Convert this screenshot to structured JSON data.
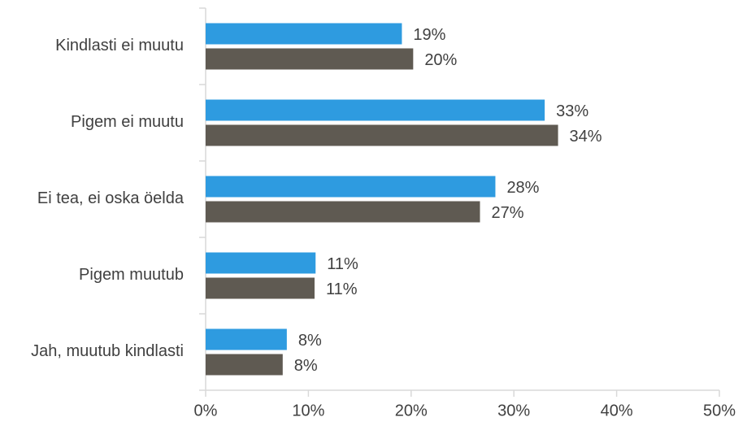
{
  "chart_data": {
    "type": "bar",
    "orientation": "horizontal",
    "categories": [
      "Kindlasti ei muutu",
      "Pigem ei muutu",
      "Ei tea, ei oska öelda",
      "Pigem muutub",
      "Jah, muutub kindlasti"
    ],
    "series": [
      {
        "color": "#2e9be0",
        "values": [
          19.1,
          33.0,
          28.2,
          10.7,
          7.9
        ],
        "value_labels": [
          "19%",
          "33%",
          "28%",
          "11%",
          "8%"
        ]
      },
      {
        "color": "#5f5a52",
        "values": [
          20.2,
          34.3,
          26.7,
          10.6,
          7.5
        ],
        "value_labels": [
          "20%",
          "34%",
          "27%",
          "11%",
          "8%"
        ]
      }
    ],
    "xlim": [
      0,
      50
    ],
    "xticks": [
      {
        "value": 0,
        "label": "0%"
      },
      {
        "value": 10,
        "label": "10%"
      },
      {
        "value": 20,
        "label": "20%"
      },
      {
        "value": 30,
        "label": "30%"
      },
      {
        "value": 40,
        "label": "40%"
      },
      {
        "value": 50,
        "label": "50%"
      }
    ],
    "grid": false
  }
}
